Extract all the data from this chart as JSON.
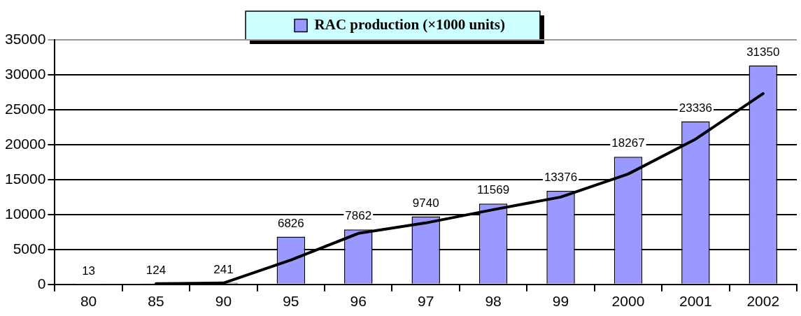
{
  "chart_data": {
    "type": "bar",
    "categories": [
      "80",
      "85",
      "90",
      "95",
      "96",
      "97",
      "98",
      "99",
      "2000",
      "2001",
      "2002"
    ],
    "series": [
      {
        "name": "RAC production (×1000 units)",
        "color": "#9999ff",
        "values": [
          13,
          124,
          241,
          6826,
          7862,
          9740,
          11569,
          13376,
          18267,
          23336,
          31350
        ],
        "value_labels": [
          "13",
          "124",
          "241",
          "6826",
          "7862",
          "9740",
          "11569",
          "13376",
          "18267",
          "23336",
          "31350"
        ]
      },
      {
        "type": "line",
        "color": "#000000",
        "values": [
          null,
          100,
          200,
          3500,
          7300,
          8800,
          10700,
          12500,
          15800,
          20800,
          27300
        ]
      }
    ],
    "ylim": [
      0,
      35000
    ],
    "yticks": [
      0,
      5000,
      10000,
      15000,
      20000,
      25000,
      30000,
      35000
    ],
    "grid": "y",
    "legend": "top",
    "marker": "none",
    "line_style": "solid"
  }
}
